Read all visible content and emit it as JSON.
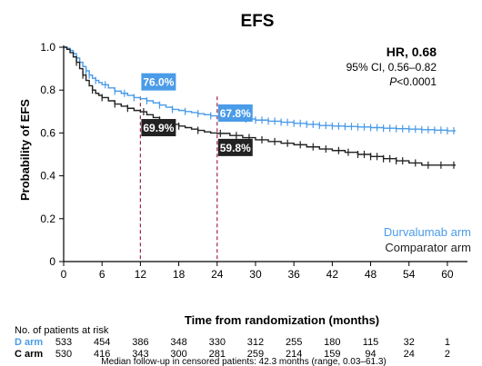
{
  "chart_data": {
    "type": "line",
    "subtype": "kaplan-meier",
    "title": "EFS",
    "xlabel": "Time from randomization (months)",
    "ylabel": "Probability of EFS",
    "xlim": [
      0,
      62
    ],
    "ylim": [
      0,
      1.0
    ],
    "xticks": [
      0,
      6,
      12,
      18,
      24,
      30,
      36,
      42,
      48,
      54,
      60
    ],
    "yticks": [
      0,
      0.2,
      0.4,
      0.6,
      0.8,
      1.0
    ],
    "ytick_labels": [
      "0",
      "0.2",
      "0.4",
      "0.6",
      "0.8",
      "1.0"
    ],
    "grid": false,
    "legend_position": "bottom-right",
    "hazard_ratio": {
      "title": "HR, 0.68",
      "ci": "95% CI, 0.56–0.82",
      "p_label": "P",
      "p_value": "<0.0001"
    },
    "series": [
      {
        "name": "Durvalumab arm",
        "color": "#4a9be8",
        "x": [
          0,
          0.5,
          1,
          1.5,
          2,
          2.5,
          3,
          3.5,
          4,
          4.5,
          5,
          5.5,
          6,
          7,
          8,
          9,
          10,
          11,
          12,
          13,
          14,
          15,
          16,
          17,
          18,
          19,
          20,
          21,
          22,
          23,
          24,
          26,
          28,
          30,
          32,
          34,
          36,
          38,
          40,
          42,
          44,
          46,
          48,
          50,
          52,
          54,
          56,
          58,
          60,
          61.3
        ],
        "y": [
          1.0,
          0.995,
          0.985,
          0.97,
          0.95,
          0.93,
          0.91,
          0.89,
          0.87,
          0.855,
          0.845,
          0.835,
          0.825,
          0.81,
          0.795,
          0.785,
          0.775,
          0.765,
          0.76,
          0.75,
          0.74,
          0.73,
          0.72,
          0.71,
          0.705,
          0.7,
          0.695,
          0.69,
          0.685,
          0.68,
          0.678,
          0.672,
          0.665,
          0.66,
          0.655,
          0.65,
          0.645,
          0.64,
          0.635,
          0.632,
          0.63,
          0.628,
          0.625,
          0.622,
          0.62,
          0.618,
          0.615,
          0.613,
          0.61,
          0.61
        ],
        "censored_x": [
          1.5,
          2.5,
          3.5,
          4,
          5,
          6.5,
          8,
          9.5,
          11,
          13,
          15,
          17,
          19,
          21,
          23,
          25,
          27,
          28.5,
          30,
          31,
          32,
          33,
          34,
          35,
          36,
          37,
          38,
          39,
          40,
          41,
          42,
          43,
          44,
          45,
          46,
          47,
          48,
          49,
          50,
          51,
          52,
          53,
          54,
          55,
          56,
          57,
          58,
          59,
          60,
          61
        ]
      },
      {
        "name": "Comparator arm",
        "color": "#222222",
        "x": [
          0,
          0.5,
          1,
          1.5,
          2,
          2.5,
          3,
          3.5,
          4,
          4.5,
          5,
          5.5,
          6,
          7,
          8,
          9,
          10,
          11,
          12,
          13,
          14,
          15,
          16,
          17,
          18,
          19,
          20,
          21,
          22,
          23,
          24,
          26,
          28,
          30,
          32,
          34,
          36,
          38,
          40,
          42,
          44,
          46,
          48,
          50,
          52,
          54,
          56,
          58,
          60,
          61.3
        ],
        "y": [
          1.0,
          0.99,
          0.975,
          0.955,
          0.93,
          0.9,
          0.87,
          0.845,
          0.82,
          0.8,
          0.785,
          0.775,
          0.765,
          0.75,
          0.735,
          0.725,
          0.715,
          0.705,
          0.699,
          0.685,
          0.672,
          0.66,
          0.65,
          0.64,
          0.632,
          0.625,
          0.618,
          0.612,
          0.605,
          0.6,
          0.598,
          0.588,
          0.578,
          0.568,
          0.56,
          0.552,
          0.545,
          0.535,
          0.525,
          0.518,
          0.51,
          0.5,
          0.49,
          0.48,
          0.47,
          0.46,
          0.45,
          0.45,
          0.45,
          0.45
        ],
        "censored_x": [
          2,
          3,
          4.5,
          6,
          8,
          10,
          12.5,
          15,
          18,
          21,
          24.5,
          27,
          29,
          31,
          33,
          35,
          37,
          39,
          41,
          43,
          44.5,
          46,
          47,
          48,
          49,
          50,
          51,
          52,
          53,
          55,
          57,
          59,
          61
        ]
      }
    ],
    "reference_lines_x": [
      12,
      24
    ],
    "annotations": [
      {
        "text": "76.0%",
        "x": 12,
        "y": 0.76,
        "series": "Durvalumab arm"
      },
      {
        "text": "67.8%",
        "x": 24,
        "y": 0.678,
        "series": "Durvalumab arm"
      },
      {
        "text": "69.9%",
        "x": 12,
        "y": 0.699,
        "series": "Comparator arm"
      },
      {
        "text": "59.8%",
        "x": 24,
        "y": 0.598,
        "series": "Comparator arm"
      }
    ],
    "risk_table": {
      "title": "No. of patients at risk",
      "rows": [
        {
          "label": "D arm",
          "color": "#4a9be8",
          "values": [
            "533",
            "454",
            "386",
            "348",
            "330",
            "312",
            "255",
            "180",
            "115",
            "32",
            "1"
          ]
        },
        {
          "label": "C arm",
          "color": "#000000",
          "values": [
            "530",
            "416",
            "343",
            "300",
            "281",
            "259",
            "214",
            "159",
            "94",
            "24",
            "2"
          ]
        }
      ]
    },
    "footnote": "Median follow-up in censored patients: 42.3 months (range, 0.03–61.3)"
  }
}
